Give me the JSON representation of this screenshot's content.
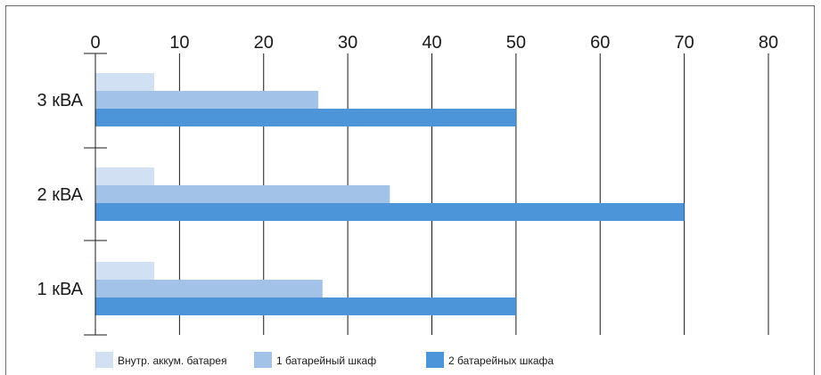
{
  "chart_data": {
    "type": "bar",
    "orientation": "horizontal",
    "categories": [
      "3 кВА",
      "2 кВА",
      "1 кВА"
    ],
    "series": [
      {
        "name": "Внутр. аккум. батарея",
        "color": "#d2e0f4",
        "values": [
          7,
          7,
          7
        ]
      },
      {
        "name": "1 батарейный шкаф",
        "color": "#a3c2e8",
        "values": [
          26.5,
          35,
          27
        ]
      },
      {
        "name": "2 батарейных шкафа",
        "color": "#4b95d8",
        "values": [
          50,
          70,
          50
        ]
      }
    ],
    "x_ticks": [
      "0",
      "10",
      "20",
      "30",
      "40",
      "50",
      "60",
      "70",
      "80"
    ],
    "xlim": [
      0,
      80
    ],
    "x_axis_position": "top",
    "grid": true,
    "legend_position": "bottom-left",
    "title": "",
    "xlabel": "",
    "ylabel": ""
  }
}
